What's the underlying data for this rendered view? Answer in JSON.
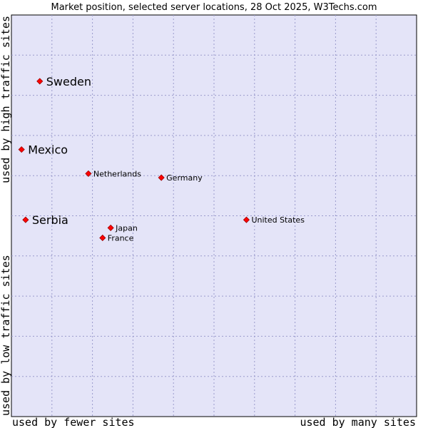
{
  "chart_data": {
    "type": "scatter",
    "title": "Market position, selected server locations, 28 Oct 2025, W3Techs.com",
    "xlabel_left": "used by fewer sites",
    "xlabel_right": "used by many sites",
    "ylabel_bottom": "used by low traffic sites",
    "ylabel_top": "used by high traffic sites",
    "xlim": [
      0,
      100
    ],
    "ylim": [
      0,
      100
    ],
    "grid": true,
    "points": [
      {
        "label": "Sweden",
        "x": 7,
        "y": 83.5,
        "emphasis": true
      },
      {
        "label": "Mexico",
        "x": 2.5,
        "y": 66.5,
        "emphasis": true
      },
      {
        "label": "Netherlands",
        "x": 19,
        "y": 60.5,
        "emphasis": false
      },
      {
        "label": "Germany",
        "x": 37,
        "y": 59.5,
        "emphasis": false
      },
      {
        "label": "Serbia",
        "x": 3.5,
        "y": 49,
        "emphasis": true
      },
      {
        "label": "Japan",
        "x": 24.5,
        "y": 47,
        "emphasis": false
      },
      {
        "label": "France",
        "x": 22.5,
        "y": 44.5,
        "emphasis": false
      },
      {
        "label": "United States",
        "x": 58,
        "y": 49,
        "emphasis": false
      }
    ],
    "colors": {
      "plot_background": "#e4e4f8",
      "marker": "#ff0000",
      "marker_edge": "#990000",
      "grid": "#9a9acc"
    }
  }
}
